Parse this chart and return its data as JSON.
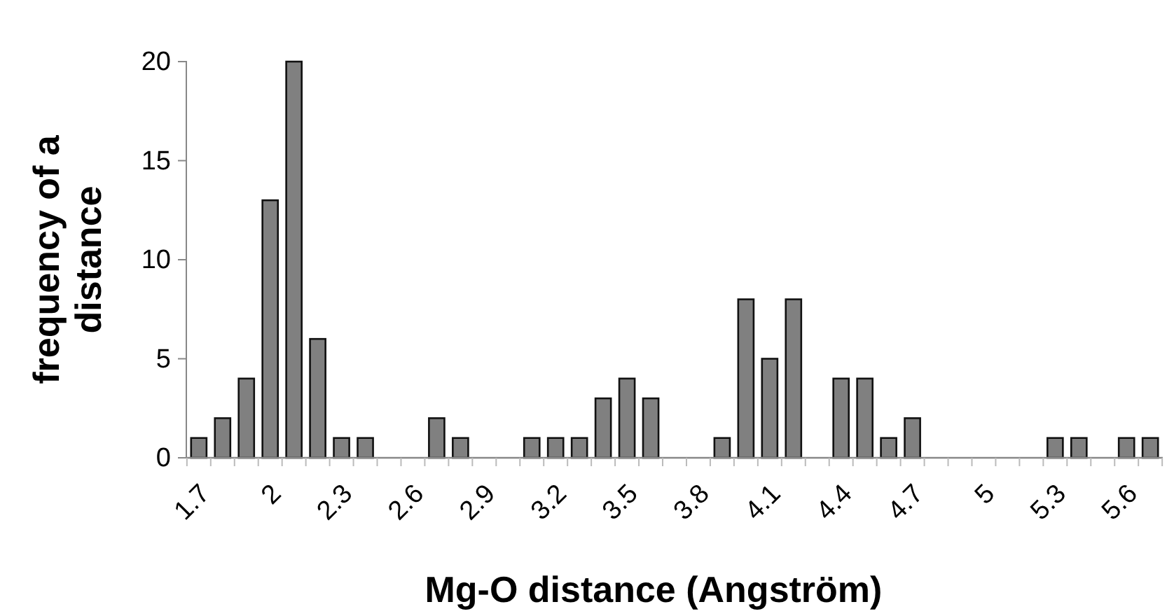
{
  "chart_data": {
    "type": "bar",
    "xlabel": "Mg-O distance (Angström)",
    "ylabel": "frequency of a distance",
    "categories": [
      "1.7",
      null,
      null,
      "2",
      null,
      null,
      "2.3",
      null,
      null,
      "2.6",
      null,
      null,
      "2.9",
      null,
      null,
      "3.2",
      null,
      null,
      "3.5",
      null,
      null,
      "3.8",
      null,
      null,
      "4.1",
      null,
      null,
      "4.4",
      null,
      null,
      "4.7",
      null,
      null,
      "5",
      null,
      null,
      "5.3",
      null,
      null,
      "5.6",
      null
    ],
    "values": [
      1,
      2,
      4,
      13,
      20,
      6,
      1,
      1,
      0,
      0,
      2,
      1,
      0,
      0,
      1,
      1,
      1,
      3,
      4,
      3,
      0,
      0,
      1,
      8,
      5,
      8,
      0,
      4,
      4,
      1,
      2,
      0,
      0,
      0,
      0,
      0,
      1,
      1,
      0,
      1,
      1
    ],
    "color": "#808080",
    "ylim": [
      0,
      20
    ],
    "yticks": [
      0,
      5,
      10,
      15,
      20
    ],
    "grid": false
  }
}
